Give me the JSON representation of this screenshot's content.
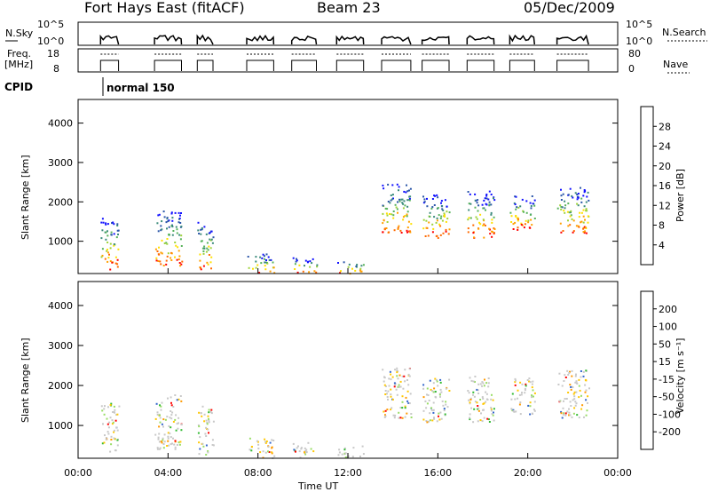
{
  "header": {
    "station": "Fort Hays East (fitACF)",
    "beam": "Beam 23",
    "date": "05/Dec/2009"
  },
  "summary_panels": {
    "nsky_label": "N.Sky",
    "nsky_ticks": [
      "10^5",
      "10^0"
    ],
    "nsearch_label": "N.Search",
    "nsearch_ticks": [
      "10^5",
      "10^0"
    ],
    "freq_label_1": "Freq.",
    "freq_label_2": "[MHz]",
    "freq_ticks": [
      "18",
      "8"
    ],
    "nave_label": "Nave",
    "nave_ticks": [
      "80",
      "0"
    ],
    "cpid_label": "CPID",
    "cpid_value": "normal 150"
  },
  "colors": {
    "power": [
      "#1010ff",
      "#2a55a8",
      "#3a8a7a",
      "#56b25a",
      "#9ed23a",
      "#ffe000",
      "#ffa000",
      "#ff6a00",
      "#ff0000"
    ],
    "velocity": [
      "#ff0000",
      "#ff6000",
      "#ff9a00",
      "#ffc800",
      "#c8c8c8",
      "#c8c8c8",
      "#99dd66",
      "#33bb33",
      "#3366cc",
      "#2a2aa8"
    ]
  },
  "chart_data": [
    {
      "type": "heatmap",
      "name": "power",
      "ylabel": "Slant Range [km]",
      "xlabel": "",
      "ylim": [
        180,
        4600
      ],
      "yticks": [
        "4000",
        "3000",
        "2000",
        "1000"
      ],
      "ytick_values": [
        4000,
        3000,
        2000,
        1000
      ],
      "colorbar_label": "Power [dB]",
      "colorbar_ticks": [
        "28",
        "24",
        "20",
        "16",
        "12",
        "8",
        "4"
      ],
      "scatter_blocks": [
        {
          "t0": 1.0,
          "t1": 1.8,
          "r0": 300,
          "r1": 1600
        },
        {
          "t0": 3.4,
          "t1": 4.6,
          "r0": 400,
          "r1": 1800
        },
        {
          "t0": 5.3,
          "t1": 6.0,
          "r0": 280,
          "r1": 1500
        },
        {
          "t0": 7.5,
          "t1": 8.7,
          "r0": 200,
          "r1": 700
        },
        {
          "t0": 9.5,
          "t1": 10.6,
          "r0": 200,
          "r1": 600
        },
        {
          "t0": 11.5,
          "t1": 12.7,
          "r0": 200,
          "r1": 500
        },
        {
          "t0": 13.5,
          "t1": 14.8,
          "r0": 1200,
          "r1": 2500
        },
        {
          "t0": 15.3,
          "t1": 16.5,
          "r0": 1100,
          "r1": 2200
        },
        {
          "t0": 17.3,
          "t1": 18.5,
          "r0": 1100,
          "r1": 2300
        },
        {
          "t0": 19.2,
          "t1": 20.3,
          "r0": 1300,
          "r1": 2200
        },
        {
          "t0": 21.3,
          "t1": 22.7,
          "r0": 1200,
          "r1": 2400
        }
      ]
    },
    {
      "type": "heatmap",
      "name": "velocity",
      "ylabel": "Slant Range [km]",
      "xlabel": "Time UT",
      "xlim": [
        0,
        24
      ],
      "xticks": [
        "00:00",
        "04:00",
        "08:00",
        "12:00",
        "16:00",
        "20:00",
        "00:00"
      ],
      "xtick_values": [
        0,
        4,
        8,
        12,
        16,
        20,
        24
      ],
      "ylim": [
        180,
        4600
      ],
      "yticks": [
        "4000",
        "3000",
        "2000",
        "1000"
      ],
      "ytick_values": [
        4000,
        3000,
        2000,
        1000
      ],
      "colorbar_label": "Velocity [m s⁻¹]",
      "colorbar_ticks": [
        "200",
        "100",
        "50",
        "15",
        "-15",
        "-50",
        "-100",
        "-200"
      ],
      "scatter_blocks": [
        {
          "t0": 1.0,
          "t1": 1.8,
          "r0": 300,
          "r1": 1600
        },
        {
          "t0": 3.4,
          "t1": 4.6,
          "r0": 400,
          "r1": 1800
        },
        {
          "t0": 5.3,
          "t1": 6.0,
          "r0": 280,
          "r1": 1500
        },
        {
          "t0": 7.5,
          "t1": 8.7,
          "r0": 200,
          "r1": 700
        },
        {
          "t0": 9.5,
          "t1": 10.6,
          "r0": 200,
          "r1": 600
        },
        {
          "t0": 11.5,
          "t1": 12.7,
          "r0": 200,
          "r1": 500
        },
        {
          "t0": 13.5,
          "t1": 14.8,
          "r0": 1200,
          "r1": 2500
        },
        {
          "t0": 15.3,
          "t1": 16.5,
          "r0": 1100,
          "r1": 2200
        },
        {
          "t0": 17.3,
          "t1": 18.5,
          "r0": 1100,
          "r1": 2300
        },
        {
          "t0": 19.2,
          "t1": 20.3,
          "r0": 1300,
          "r1": 2200
        },
        {
          "t0": 21.3,
          "t1": 22.7,
          "r0": 1200,
          "r1": 2400
        }
      ]
    }
  ]
}
